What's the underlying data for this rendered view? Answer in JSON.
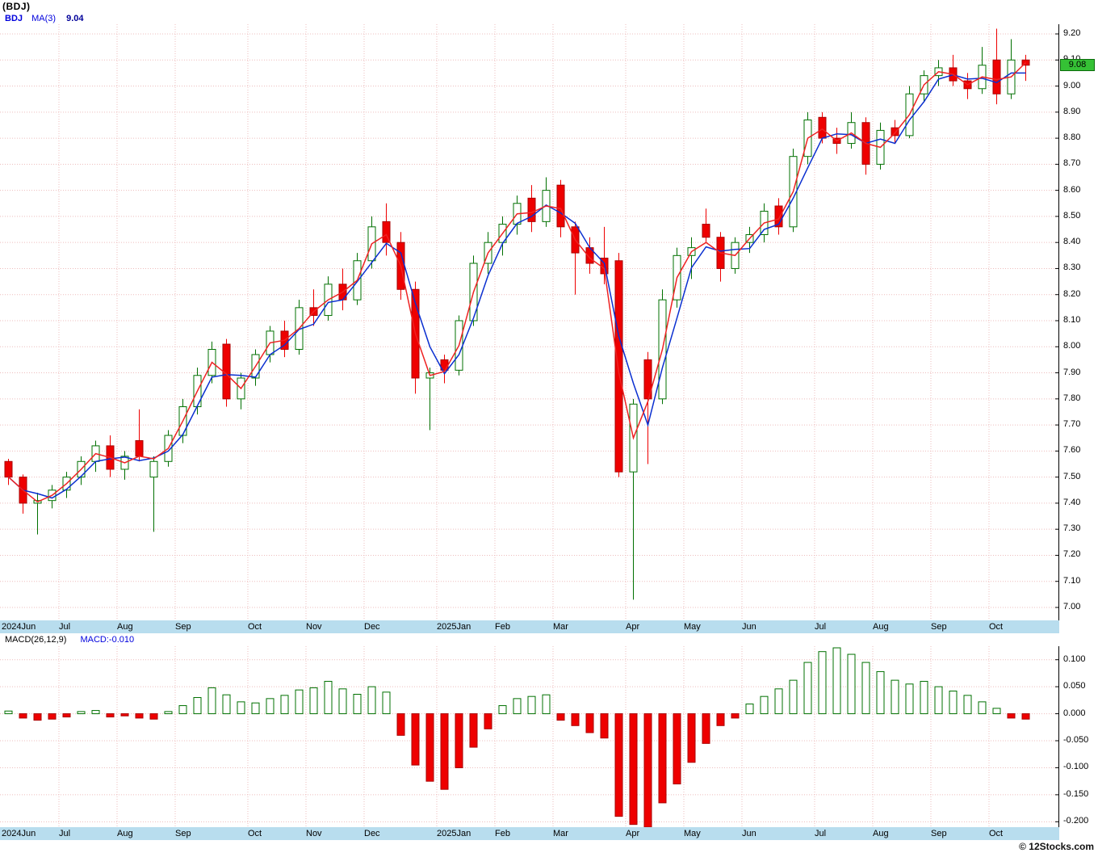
{
  "title": "(BDJ)",
  "legend": {
    "symbol": "BDJ",
    "ma_label": "MA(3)",
    "ma_value": "9.04"
  },
  "macd_legend": {
    "label": "MACD(26,12,9)",
    "value": "MACD:-0.010"
  },
  "y_axis": {
    "last_price_badge": "9.08"
  },
  "footer": {
    "copyright": "© 12Stocks.com"
  },
  "colors": {
    "up_candle": "#007000",
    "down_candle": "#ee0000",
    "down_border": "#aa0000",
    "ma_slow_blue": "#0a2fd0",
    "ma_fast_red": "#ee2222",
    "grid": "#edbcbc",
    "band_bg": "#b8ddee",
    "badge_bg": "#35c135",
    "legend_blue": "#0000dd",
    "axis_text": "#000000"
  },
  "chart_data": [
    {
      "type": "candlestick",
      "symbol": "BDJ",
      "interval": "weekly",
      "overlays": [
        "MA(3)"
      ],
      "legend": [
        "BDJ",
        "MA(3)"
      ],
      "ylim": [
        7.0,
        9.2
      ],
      "ytick_step": 0.1,
      "last_close": 9.08,
      "ma3_last": 9.04,
      "grid": true,
      "month_starts": [
        {
          "index": 0,
          "label": "2024Jun"
        },
        {
          "index": 4,
          "label": "Jul"
        },
        {
          "index": 8,
          "label": "Aug"
        },
        {
          "index": 12,
          "label": "Sep"
        },
        {
          "index": 17,
          "label": "Oct"
        },
        {
          "index": 21,
          "label": "Nov"
        },
        {
          "index": 25,
          "label": "Dec"
        },
        {
          "index": 30,
          "label": "2025Jan"
        },
        {
          "index": 34,
          "label": "Feb"
        },
        {
          "index": 38,
          "label": "Mar"
        },
        {
          "index": 43,
          "label": "Apr"
        },
        {
          "index": 47,
          "label": "May"
        },
        {
          "index": 51,
          "label": "Jun"
        },
        {
          "index": 56,
          "label": "Jul"
        },
        {
          "index": 60,
          "label": "Aug"
        },
        {
          "index": 64,
          "label": "Sep"
        },
        {
          "index": 68,
          "label": "Oct"
        }
      ],
      "columns": [
        "open",
        "high",
        "low",
        "close"
      ],
      "candles": [
        [
          7.56,
          7.57,
          7.47,
          7.5
        ],
        [
          7.5,
          7.51,
          7.36,
          7.4
        ],
        [
          7.4,
          7.44,
          7.28,
          7.41
        ],
        [
          7.41,
          7.47,
          7.38,
          7.45
        ],
        [
          7.45,
          7.52,
          7.42,
          7.5
        ],
        [
          7.5,
          7.58,
          7.47,
          7.56
        ],
        [
          7.56,
          7.64,
          7.52,
          7.62
        ],
        [
          7.62,
          7.66,
          7.5,
          7.53
        ],
        [
          7.53,
          7.6,
          7.49,
          7.58
        ],
        [
          7.64,
          7.76,
          7.56,
          7.58
        ],
        [
          7.5,
          7.58,
          7.29,
          7.56
        ],
        [
          7.56,
          7.68,
          7.54,
          7.66
        ],
        [
          7.66,
          7.8,
          7.63,
          7.77
        ],
        [
          7.77,
          7.92,
          7.74,
          7.89
        ],
        [
          7.89,
          8.02,
          7.86,
          7.99
        ],
        [
          8.01,
          8.03,
          7.77,
          7.8
        ],
        [
          7.8,
          7.9,
          7.76,
          7.88
        ],
        [
          7.88,
          7.99,
          7.85,
          7.97
        ],
        [
          7.97,
          8.08,
          7.94,
          8.06
        ],
        [
          8.06,
          8.1,
          7.96,
          7.99
        ],
        [
          7.99,
          8.18,
          7.97,
          8.15
        ],
        [
          8.15,
          8.22,
          8.08,
          8.12
        ],
        [
          8.12,
          8.27,
          8.1,
          8.24
        ],
        [
          8.24,
          8.3,
          8.14,
          8.18
        ],
        [
          8.18,
          8.36,
          8.16,
          8.33
        ],
        [
          8.33,
          8.5,
          8.3,
          8.46
        ],
        [
          8.48,
          8.55,
          8.35,
          8.4
        ],
        [
          8.4,
          8.44,
          8.18,
          8.22
        ],
        [
          8.22,
          8.25,
          7.82,
          7.88
        ],
        [
          7.88,
          7.92,
          7.68,
          7.9
        ],
        [
          7.95,
          7.97,
          7.86,
          7.91
        ],
        [
          7.91,
          8.12,
          7.89,
          8.1
        ],
        [
          8.1,
          8.35,
          8.08,
          8.32
        ],
        [
          8.32,
          8.44,
          8.28,
          8.4
        ],
        [
          8.4,
          8.5,
          8.35,
          8.47
        ],
        [
          8.47,
          8.58,
          8.43,
          8.55
        ],
        [
          8.57,
          8.62,
          8.44,
          8.48
        ],
        [
          8.48,
          8.65,
          8.46,
          8.6
        ],
        [
          8.62,
          8.64,
          8.42,
          8.46
        ],
        [
          8.46,
          8.48,
          8.2,
          8.36
        ],
        [
          8.38,
          8.42,
          8.28,
          8.32
        ],
        [
          8.34,
          8.46,
          8.24,
          8.28
        ],
        [
          8.33,
          8.36,
          7.5,
          7.52
        ],
        [
          7.52,
          7.8,
          7.03,
          7.78
        ],
        [
          7.95,
          7.98,
          7.55,
          7.8
        ],
        [
          7.8,
          8.22,
          7.78,
          8.18
        ],
        [
          8.18,
          8.38,
          8.15,
          8.35
        ],
        [
          8.35,
          8.42,
          8.26,
          8.38
        ],
        [
          8.47,
          8.53,
          8.4,
          8.42
        ],
        [
          8.42,
          8.44,
          8.25,
          8.3
        ],
        [
          8.3,
          8.42,
          8.28,
          8.4
        ],
        [
          8.4,
          8.46,
          8.36,
          8.43
        ],
        [
          8.43,
          8.55,
          8.4,
          8.52
        ],
        [
          8.54,
          8.57,
          8.43,
          8.46
        ],
        [
          8.46,
          8.76,
          8.44,
          8.73
        ],
        [
          8.73,
          8.9,
          8.7,
          8.87
        ],
        [
          8.88,
          8.9,
          8.78,
          8.8
        ],
        [
          8.8,
          8.84,
          8.74,
          8.78
        ],
        [
          8.78,
          8.9,
          8.76,
          8.86
        ],
        [
          8.86,
          8.88,
          8.66,
          8.7
        ],
        [
          8.7,
          8.86,
          8.68,
          8.83
        ],
        [
          8.84,
          8.87,
          8.78,
          8.81
        ],
        [
          8.81,
          9.0,
          8.8,
          8.97
        ],
        [
          8.97,
          9.06,
          8.94,
          9.04
        ],
        [
          9.04,
          9.1,
          9.0,
          9.07
        ],
        [
          9.07,
          9.12,
          9.0,
          9.02
        ],
        [
          9.02,
          9.05,
          8.95,
          8.99
        ],
        [
          8.99,
          9.15,
          8.97,
          9.08
        ],
        [
          9.1,
          9.22,
          8.93,
          8.97
        ],
        [
          8.97,
          9.18,
          8.95,
          9.1
        ],
        [
          9.1,
          9.12,
          9.02,
          9.08
        ]
      ]
    },
    {
      "type": "bar",
      "title": "MACD(26,12,9)",
      "last_value": -0.01,
      "ylim": [
        -0.21,
        0.125
      ],
      "ticks": [
        0.1,
        0.05,
        0.0,
        -0.05,
        -0.1,
        -0.15,
        -0.2
      ],
      "values": [
        0.005,
        -0.008,
        -0.012,
        -0.01,
        -0.006,
        0.004,
        0.006,
        -0.006,
        -0.004,
        -0.008,
        -0.01,
        0.004,
        0.015,
        0.03,
        0.048,
        0.035,
        0.022,
        0.02,
        0.028,
        0.034,
        0.044,
        0.048,
        0.06,
        0.046,
        0.036,
        0.05,
        0.04,
        -0.04,
        -0.095,
        -0.125,
        -0.14,
        -0.1,
        -0.062,
        -0.028,
        0.015,
        0.028,
        0.032,
        0.035,
        -0.012,
        -0.022,
        -0.035,
        -0.045,
        -0.19,
        -0.205,
        -0.21,
        -0.165,
        -0.13,
        -0.09,
        -0.055,
        -0.022,
        -0.008,
        0.018,
        0.032,
        0.046,
        0.062,
        0.095,
        0.115,
        0.122,
        0.11,
        0.095,
        0.078,
        0.062,
        0.055,
        0.06,
        0.05,
        0.042,
        0.034,
        0.022,
        0.01,
        -0.008,
        -0.01
      ]
    }
  ]
}
